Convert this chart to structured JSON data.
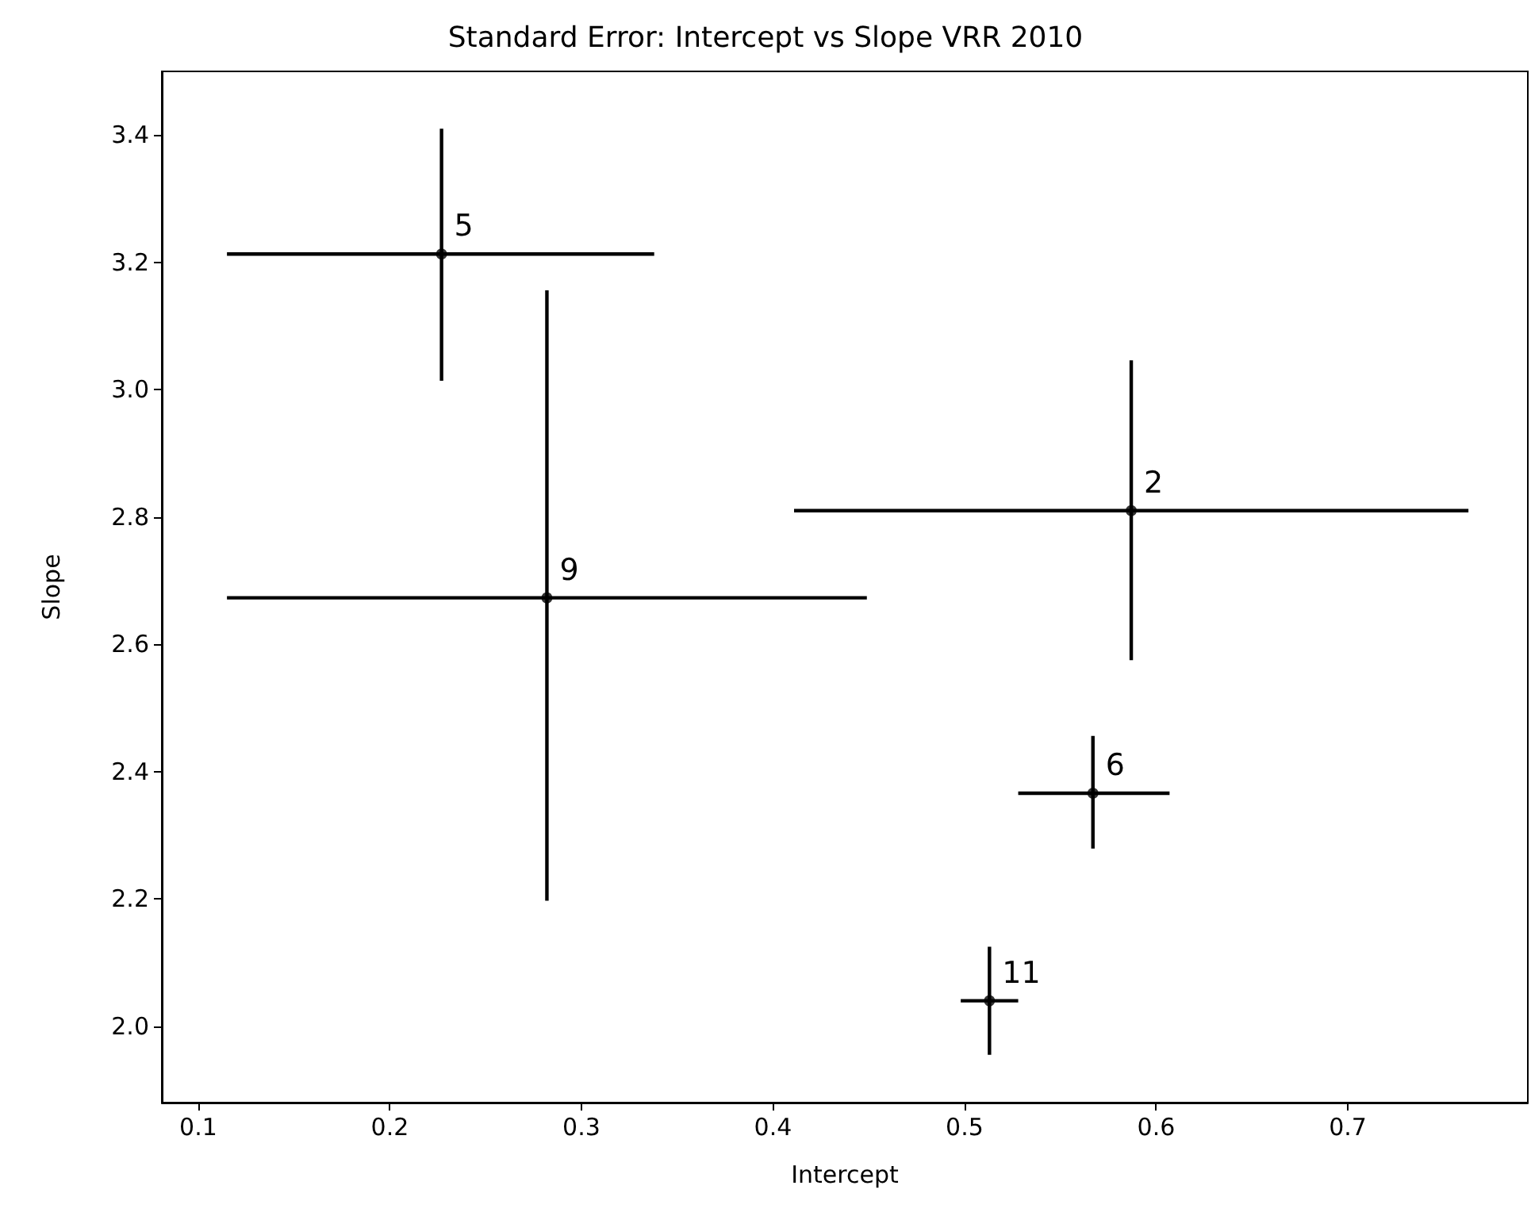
{
  "chart_data": {
    "type": "scatter",
    "title": "Standard Error: Intercept vs Slope VRR 2010",
    "xlabel": "Intercept",
    "ylabel": "Slope",
    "x": [
      0.227,
      0.282,
      0.587,
      0.567,
      0.513
    ],
    "series": [
      {
        "color": "#000000",
        "values": [
          3.213,
          2.673,
          2.81,
          2.366,
          2.04
        ],
        "xerrors": [
          [
            0.115,
            0.338
          ],
          [
            0.115,
            0.449
          ],
          [
            0.411,
            0.763
          ],
          [
            0.528,
            0.607
          ],
          [
            0.498,
            0.528
          ]
        ],
        "errors": [
          [
            3.014,
            3.41
          ],
          [
            2.197,
            3.156
          ],
          [
            2.575,
            3.046
          ],
          [
            2.279,
            2.456
          ],
          [
            1.955,
            2.125
          ]
        ]
      }
    ],
    "annotations": [
      {
        "text": "5",
        "x": 0.227,
        "y": 3.213
      },
      {
        "text": "9",
        "x": 0.282,
        "y": 2.673
      },
      {
        "text": "2",
        "x": 0.587,
        "y": 2.81
      },
      {
        "text": "6",
        "x": 0.567,
        "y": 2.366
      },
      {
        "text": "11",
        "x": 0.513,
        "y": 2.04
      }
    ],
    "xlim": [
      0.081,
      0.794
    ],
    "ylim": [
      1.88,
      3.5
    ],
    "xticks": [
      0.1,
      0.2,
      0.3,
      0.4,
      0.5,
      0.6,
      0.7
    ],
    "yticks": [
      {
        "value": 2,
        "label": "2.0"
      },
      2.2,
      2.4,
      2.6,
      2.8,
      {
        "value": 3,
        "label": "3.0"
      },
      3.2,
      3.4
    ],
    "marker": "circle",
    "grid": false
  }
}
